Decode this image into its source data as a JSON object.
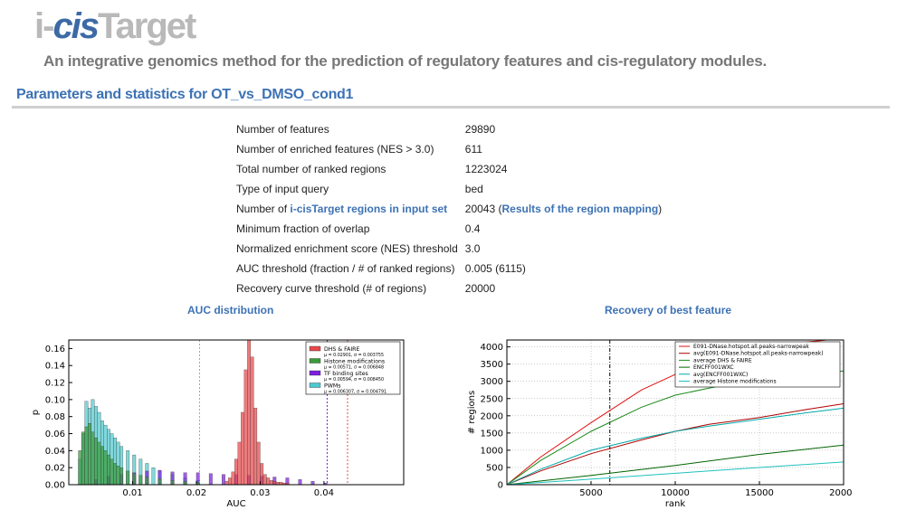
{
  "header": {
    "logo_prefix": "i-",
    "logo_cis": "cis",
    "logo_suffix": "Target",
    "tagline": "An integrative genomics method for the prediction of regulatory features and cis-regulatory modules.",
    "section_title": "Parameters and statistics for OT_vs_DMSO_cond1"
  },
  "params": {
    "rows": [
      {
        "label": "Number of features",
        "value": "29890"
      },
      {
        "label": "Number of enriched features (NES > 3.0)",
        "value": "611"
      },
      {
        "label": "Total number of ranked regions",
        "value": "1223024"
      },
      {
        "label": "Type of input query",
        "value": "bed"
      },
      {
        "label": "Minimum fraction of overlap",
        "value": "0.4"
      },
      {
        "label": "Normalized enrichment score (NES) threshold",
        "value": "3.0"
      },
      {
        "label": "AUC threshold (fraction / # of ranked regions)",
        "value": "0.005 (6115)"
      },
      {
        "label": "Recovery curve threshold (# of regions)",
        "value": "20000"
      }
    ],
    "link_row": {
      "label_prefix": "Number of ",
      "label_link": "i-cisTarget regions in input set",
      "value": "20043",
      "value_open": " (",
      "value_link": "Results of the region mapping",
      "value_close": ")"
    }
  },
  "figures": {
    "auc_title": "AUC distribution",
    "recovery_title": "Recovery of best feature"
  },
  "chart_data": [
    {
      "type": "bar",
      "title": "",
      "xlabel": "AUC",
      "ylabel": "p",
      "xlim": [
        0,
        0.0525
      ],
      "ylim": [
        0,
        0.17
      ],
      "x_ticks": [
        "0.01",
        "0.02",
        "0.03",
        "0.04"
      ],
      "y_ticks": [
        "0.00",
        "0.02",
        "0.04",
        "0.06",
        "0.08",
        "0.10",
        "0.12",
        "0.14",
        "0.16"
      ],
      "legend_placement": "top-right",
      "bin_width": 0.0005,
      "series": [
        {
          "name": "DHS & FAIRE",
          "stat": "μ = 0.02901, σ = 0.003755",
          "color": "#e8474a",
          "x": [
            0.0245,
            0.025,
            0.0255,
            0.026,
            0.0265,
            0.027,
            0.0275,
            0.028,
            0.0285,
            0.029,
            0.0295,
            0.03,
            0.0305,
            0.031,
            0.0315,
            0.032,
            0.0325,
            0.033,
            0.0335,
            0.034
          ],
          "values": [
            0.004,
            0.008,
            0.015,
            0.03,
            0.05,
            0.085,
            0.135,
            0.175,
            0.15,
            0.09,
            0.05,
            0.025,
            0.012,
            0.008,
            0.005,
            0.004,
            0.003,
            0.003,
            0.002,
            0.002
          ]
        },
        {
          "name": "Histone modifications",
          "stat": "μ = 0.00571, σ = 0.006848",
          "color": "#3a9a3a",
          "x": [
            0.0015,
            0.002,
            0.0025,
            0.003,
            0.0035,
            0.004,
            0.0045,
            0.005,
            0.0055,
            0.006,
            0.0065,
            0.007,
            0.0075,
            0.008,
            0.009,
            0.01,
            0.011,
            0.012,
            0.014,
            0.016,
            0.018,
            0.02
          ],
          "values": [
            0.04,
            0.062,
            0.068,
            0.072,
            0.062,
            0.055,
            0.05,
            0.045,
            0.04,
            0.035,
            0.03,
            0.025,
            0.022,
            0.02,
            0.016,
            0.013,
            0.011,
            0.009,
            0.007,
            0.005,
            0.004,
            0.003
          ]
        },
        {
          "name": "TF binding sites",
          "stat": "μ = 0.00594, σ = 0.008450",
          "color": "#7b1fe0",
          "x": [
            0.004,
            0.006,
            0.008,
            0.01,
            0.012,
            0.014,
            0.016,
            0.018,
            0.02,
            0.022,
            0.024,
            0.026,
            0.028,
            0.03,
            0.032,
            0.034,
            0.036,
            0.038,
            0.04
          ],
          "values": [
            0.006,
            0.01,
            0.012,
            0.014,
            0.016,
            0.017,
            0.015,
            0.014,
            0.014,
            0.013,
            0.012,
            0.012,
            0.011,
            0.01,
            0.009,
            0.008,
            0.006,
            0.004,
            0.002
          ]
        },
        {
          "name": "PWMs",
          "stat": "μ = 0.006307, σ = 0.004791",
          "color": "#4ec9cf",
          "x": [
            0.0015,
            0.002,
            0.0025,
            0.003,
            0.0035,
            0.004,
            0.0045,
            0.005,
            0.0055,
            0.006,
            0.0065,
            0.007,
            0.0075,
            0.008,
            0.009,
            0.01,
            0.011,
            0.012,
            0.013,
            0.014,
            0.016,
            0.018,
            0.02
          ],
          "values": [
            0.03,
            0.06,
            0.098,
            0.09,
            0.1,
            0.092,
            0.085,
            0.075,
            0.07,
            0.065,
            0.06,
            0.055,
            0.05,
            0.045,
            0.04,
            0.035,
            0.03,
            0.025,
            0.02,
            0.016,
            0.012,
            0.008,
            0.005
          ]
        }
      ],
      "threshold_lines": [
        0.0205,
        0.0405,
        0.0437
      ]
    },
    {
      "type": "line",
      "title": "",
      "xlabel": "rank",
      "ylabel": "# regions",
      "xlim": [
        0,
        20000
      ],
      "ylim": [
        0,
        4200
      ],
      "x_ticks": [
        "5000",
        "10000",
        "15000",
        "20000"
      ],
      "y_ticks": [
        "0",
        "500",
        "1000",
        "1500",
        "2000",
        "2500",
        "3000",
        "3500",
        "4000"
      ],
      "legend_placement": "top-right",
      "series": [
        {
          "name": "E091-DNase.hotspot.all.peaks-narrowpeak",
          "color": "#e01010",
          "x": [
            0,
            2000,
            5000,
            8000,
            10000,
            12000,
            14000,
            16000,
            20000
          ],
          "values": [
            0,
            800,
            1800,
            2750,
            3200,
            3700,
            3900,
            4050,
            4250
          ]
        },
        {
          "name": "avg(E091-DNase.hotspot.all.peaks-narrowpeak)",
          "color": "#b00000",
          "x": [
            0,
            2000,
            5000,
            8000,
            10000,
            12000,
            15000,
            18000,
            20000
          ],
          "values": [
            0,
            400,
            900,
            1300,
            1550,
            1750,
            1950,
            2200,
            2350
          ]
        },
        {
          "name": "average DHS & FAIRE",
          "color": "#1a8a1a",
          "x": [
            0,
            2000,
            5000,
            8000,
            10000,
            12000,
            14000,
            17000,
            20000
          ],
          "values": [
            0,
            700,
            1550,
            2250,
            2600,
            2800,
            3000,
            3150,
            3300
          ]
        },
        {
          "name": "ENCFF001WXC",
          "color": "#006400",
          "x": [
            0,
            5000,
            10000,
            15000,
            20000
          ],
          "values": [
            0,
            270,
            560,
            880,
            1150
          ]
        },
        {
          "name": "avg(ENCFF001WXC)",
          "color": "#00a8a8",
          "x": [
            0,
            2000,
            5000,
            8000,
            10000,
            12000,
            15000,
            18000,
            20000
          ],
          "values": [
            0,
            450,
            1000,
            1350,
            1550,
            1700,
            1900,
            2100,
            2220
          ]
        },
        {
          "name": "average Histone modifications",
          "color": "#20c0c0",
          "x": [
            0,
            5000,
            10000,
            15000,
            20000
          ],
          "values": [
            0,
            160,
            330,
            500,
            660
          ]
        }
      ],
      "threshold_lines": [
        6115
      ]
    }
  ]
}
